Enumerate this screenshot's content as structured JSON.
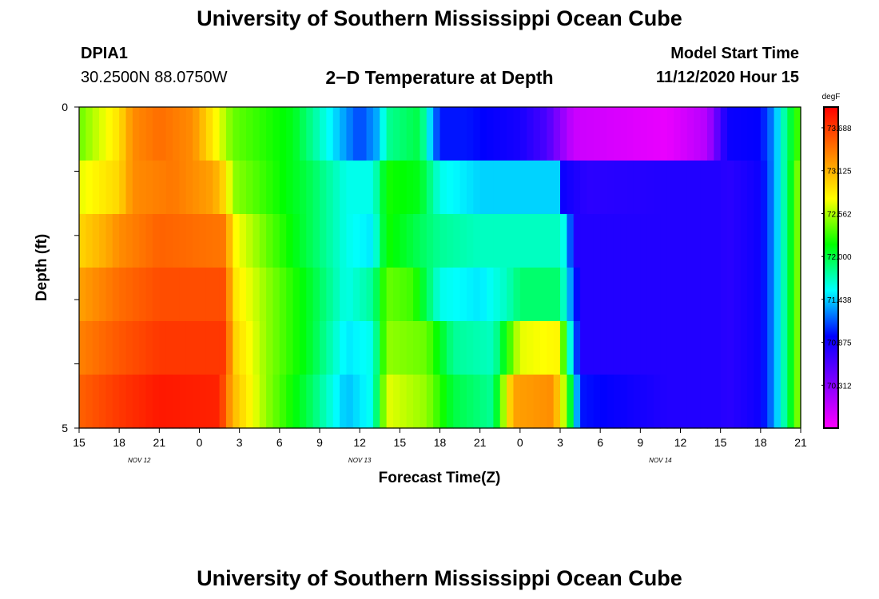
{
  "header": {
    "title": "University of Southern Mississippi Ocean Cube",
    "station_id": "DPIA1",
    "station_coords": "30.2500N 88.0750W",
    "plot_title": "2−D Temperature at Depth",
    "model_label": "Model Start Time",
    "model_value": "11/12/2020 Hour 15"
  },
  "footer": {
    "title": "University of Southern Mississippi Ocean Cube"
  },
  "chart_data": {
    "type": "heatmap",
    "xlabel": "Forecast Time(Z)",
    "ylabel": "Depth (ft)",
    "x_tick_labels": [
      "15",
      "18",
      "21",
      "0",
      "3",
      "6",
      "9",
      "12",
      "15",
      "18",
      "21",
      "0",
      "3",
      "6",
      "9",
      "12",
      "15",
      "18",
      "21"
    ],
    "date_labels": [
      {
        "text": "NOV 12",
        "at_hour": 4.5
      },
      {
        "text": "NOV 13",
        "at_hour": 21
      },
      {
        "text": "NOV 14",
        "at_hour": 43.5
      }
    ],
    "x_range_hours": [
      0,
      54
    ],
    "y_ticks": [
      "0",
      "5"
    ],
    "ylim": [
      0,
      5
    ],
    "depths": [
      0,
      1,
      2,
      3,
      4,
      5
    ],
    "colorbar": {
      "unit": "degF",
      "min": 69.75,
      "max": 73.96,
      "tick_values": [
        "73.688",
        "73.125",
        "72.562",
        "72.000",
        "71.438",
        "70.875",
        "70.312"
      ],
      "colors": [
        "#ff00ff",
        "#8000ff",
        "#0000ff",
        "#00ffff",
        "#00ff00",
        "#ffff00",
        "#ff8000",
        "#ff0000"
      ]
    },
    "series": [
      {
        "depth": 0,
        "keyframes": [
          [
            0,
            72.4
          ],
          [
            3,
            72.9
          ],
          [
            4,
            73.3
          ],
          [
            6,
            73.45
          ],
          [
            8.5,
            73.3
          ],
          [
            10,
            72.85
          ],
          [
            11.5,
            72.4
          ],
          [
            16,
            72.1
          ],
          [
            19,
            71.5
          ],
          [
            21,
            71.1
          ],
          [
            22.5,
            71.4
          ],
          [
            23,
            71.8
          ],
          [
            25.5,
            72.0
          ],
          [
            26.5,
            71.3
          ],
          [
            27,
            71.0
          ],
          [
            29,
            71.0
          ],
          [
            33,
            70.85
          ],
          [
            35,
            70.6
          ],
          [
            37,
            70.0
          ],
          [
            44,
            69.85
          ],
          [
            47,
            70.1
          ],
          [
            48.5,
            70.9
          ],
          [
            51,
            70.95
          ],
          [
            52,
            71.3
          ],
          [
            53,
            71.9
          ],
          [
            54,
            72.4
          ]
        ]
      },
      {
        "depth": 1,
        "keyframes": [
          [
            0,
            72.7
          ],
          [
            3,
            72.95
          ],
          [
            4,
            73.3
          ],
          [
            7,
            73.4
          ],
          [
            10,
            73.2
          ],
          [
            11,
            72.9
          ],
          [
            11.5,
            72.5
          ],
          [
            17,
            72.0
          ],
          [
            20,
            71.6
          ],
          [
            22,
            71.6
          ],
          [
            23,
            72.2
          ],
          [
            25.5,
            72.1
          ],
          [
            27,
            71.6
          ],
          [
            30,
            71.45
          ],
          [
            36,
            71.45
          ],
          [
            36.2,
            70.9
          ],
          [
            38,
            70.75
          ],
          [
            44,
            70.8
          ],
          [
            48,
            70.8
          ],
          [
            48.5,
            70.75
          ],
          [
            51,
            70.9
          ],
          [
            52,
            71.3
          ],
          [
            53,
            71.9
          ],
          [
            54,
            72.6
          ]
        ]
      },
      {
        "depth": 2,
        "keyframes": [
          [
            0,
            72.95
          ],
          [
            2,
            73.15
          ],
          [
            3,
            73.3
          ],
          [
            6,
            73.5
          ],
          [
            11,
            73.4
          ],
          [
            11.5,
            72.8
          ],
          [
            14,
            72.4
          ],
          [
            17,
            72.0
          ],
          [
            20,
            71.6
          ],
          [
            22,
            71.5
          ],
          [
            23,
            72.2
          ],
          [
            25,
            72.0
          ],
          [
            27,
            71.8
          ],
          [
            30,
            71.7
          ],
          [
            36,
            71.7
          ],
          [
            36.5,
            71.5
          ],
          [
            37,
            70.8
          ],
          [
            44,
            70.8
          ],
          [
            48,
            70.8
          ],
          [
            48.5,
            70.75
          ],
          [
            51,
            70.9
          ],
          [
            52,
            71.3
          ],
          [
            53,
            71.9
          ],
          [
            54,
            72.6
          ]
        ]
      },
      {
        "depth": 3,
        "keyframes": [
          [
            0,
            73.2
          ],
          [
            3,
            73.45
          ],
          [
            6,
            73.6
          ],
          [
            11,
            73.6
          ],
          [
            11.5,
            72.9
          ],
          [
            14,
            72.5
          ],
          [
            17,
            72.1
          ],
          [
            20,
            71.6
          ],
          [
            22,
            71.8
          ],
          [
            23,
            72.4
          ],
          [
            25,
            72.3
          ],
          [
            27,
            71.6
          ],
          [
            30,
            71.5
          ],
          [
            32,
            71.7
          ],
          [
            33,
            71.9
          ],
          [
            36,
            71.9
          ],
          [
            36.5,
            71.5
          ],
          [
            37.5,
            70.8
          ],
          [
            44,
            70.8
          ],
          [
            48,
            70.8
          ],
          [
            48.5,
            70.75
          ],
          [
            51,
            70.9
          ],
          [
            52,
            71.3
          ],
          [
            53,
            71.9
          ],
          [
            54,
            72.6
          ]
        ]
      },
      {
        "depth": 4,
        "keyframes": [
          [
            0,
            73.35
          ],
          [
            3,
            73.55
          ],
          [
            6,
            73.7
          ],
          [
            11,
            73.7
          ],
          [
            11.5,
            73.0
          ],
          [
            14,
            72.5
          ],
          [
            17,
            72.1
          ],
          [
            20,
            71.5
          ],
          [
            22,
            71.6
          ],
          [
            23,
            72.5
          ],
          [
            26,
            72.4
          ],
          [
            28,
            71.8
          ],
          [
            31,
            71.7
          ],
          [
            32,
            72.2
          ],
          [
            33,
            72.7
          ],
          [
            36,
            72.8
          ],
          [
            36.5,
            71.9
          ],
          [
            37.5,
            70.8
          ],
          [
            44,
            70.8
          ],
          [
            48,
            70.8
          ],
          [
            48.5,
            70.75
          ],
          [
            51,
            70.9
          ],
          [
            52,
            71.3
          ],
          [
            53,
            71.9
          ],
          [
            54,
            72.6
          ]
        ]
      },
      {
        "depth": 5,
        "keyframes": [
          [
            0,
            73.5
          ],
          [
            3,
            73.7
          ],
          [
            6,
            73.85
          ],
          [
            10.5,
            73.8
          ],
          [
            11.5,
            73.1
          ],
          [
            14,
            72.5
          ],
          [
            17,
            72.0
          ],
          [
            20,
            71.4
          ],
          [
            22,
            71.6
          ],
          [
            23,
            72.7
          ],
          [
            26,
            72.5
          ],
          [
            28,
            72.0
          ],
          [
            31,
            71.8
          ],
          [
            31.5,
            72.3
          ],
          [
            32.5,
            73.2
          ],
          [
            35.5,
            73.3
          ],
          [
            36.5,
            72.4
          ],
          [
            37.5,
            71.0
          ],
          [
            44,
            70.8
          ],
          [
            48,
            70.8
          ],
          [
            48.5,
            70.75
          ],
          [
            51,
            70.9
          ],
          [
            52,
            71.3
          ],
          [
            53,
            71.9
          ],
          [
            54,
            72.6
          ]
        ]
      }
    ]
  }
}
